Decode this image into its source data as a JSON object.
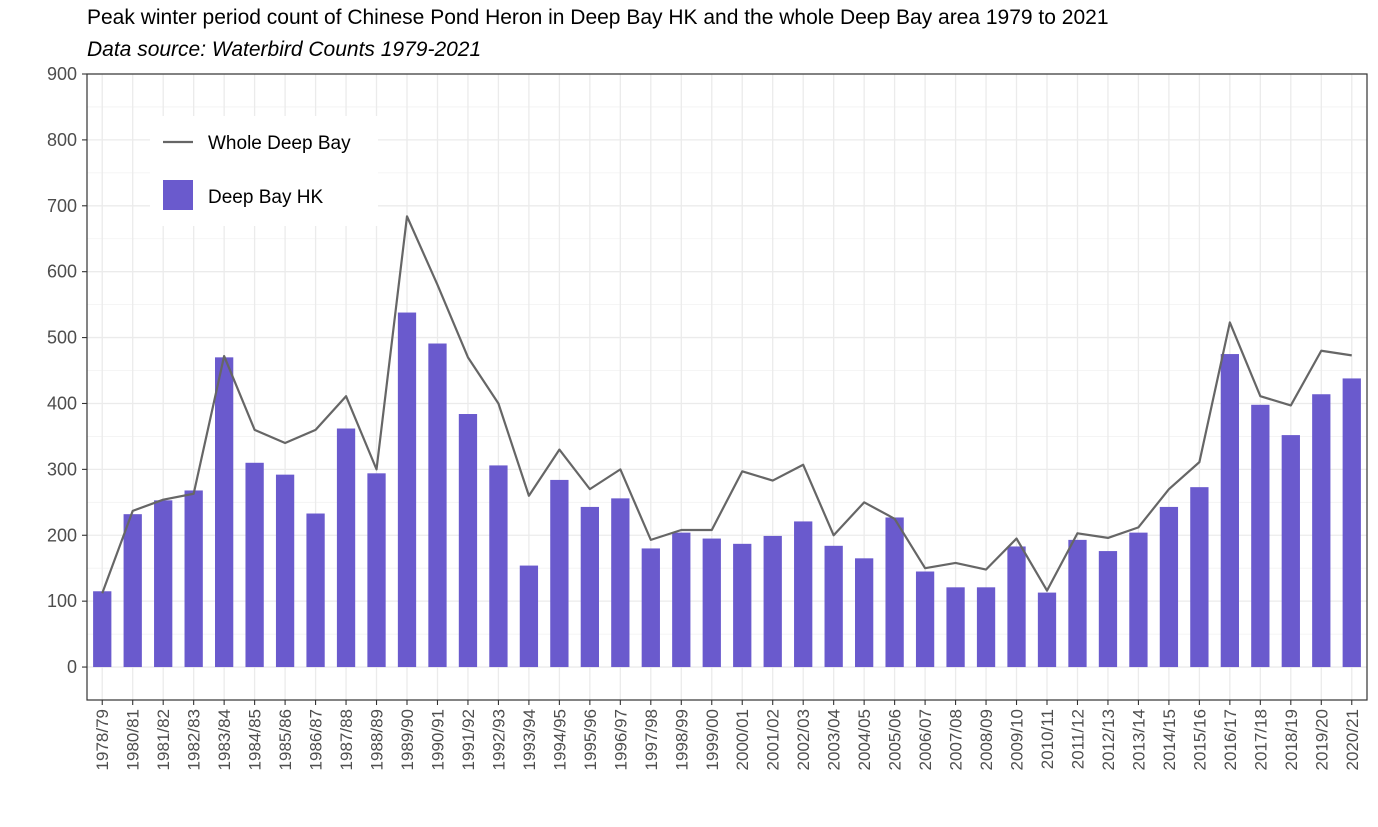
{
  "chart_data": {
    "type": "bar",
    "title": "Peak winter period count of Chinese Pond Heron in Deep Bay HK and the whole Deep Bay area 1979 to 2021",
    "subtitle": "Data source: Waterbird Counts 1979-2021",
    "categories": [
      "1978/79",
      "1980/81",
      "1981/82",
      "1982/83",
      "1983/84",
      "1984/85",
      "1985/86",
      "1986/87",
      "1987/88",
      "1988/89",
      "1989/90",
      "1990/91",
      "1991/92",
      "1992/93",
      "1993/94",
      "1994/95",
      "1995/96",
      "1996/97",
      "1997/98",
      "1998/99",
      "1999/00",
      "2000/01",
      "2001/02",
      "2002/03",
      "2003/04",
      "2004/05",
      "2005/06",
      "2006/07",
      "2007/08",
      "2008/09",
      "2009/10",
      "2010/11",
      "2011/12",
      "2012/13",
      "2013/14",
      "2014/15",
      "2015/16",
      "2016/17",
      "2017/18",
      "2018/19",
      "2019/20",
      "2020/21"
    ],
    "series": [
      {
        "name": "Deep Bay HK",
        "kind": "bar",
        "color": "#6a5acd",
        "values": [
          115,
          232,
          253,
          268,
          470,
          310,
          292,
          233,
          362,
          294,
          538,
          491,
          384,
          306,
          154,
          284,
          243,
          256,
          180,
          204,
          195,
          187,
          199,
          221,
          184,
          165,
          227,
          145,
          121,
          121,
          183,
          113,
          193,
          176,
          204,
          243,
          273,
          475,
          398,
          352,
          414,
          438
        ]
      },
      {
        "name": "Whole Deep Bay",
        "kind": "line",
        "color": "#666666",
        "values": [
          112,
          237,
          254,
          263,
          472,
          360,
          340,
          360,
          411,
          300,
          684,
          580,
          470,
          400,
          260,
          330,
          270,
          300,
          193,
          208,
          208,
          297,
          283,
          307,
          200,
          250,
          225,
          150,
          158,
          148,
          195,
          116,
          203,
          196,
          212,
          270,
          311,
          523,
          411,
          397,
          480,
          473
        ]
      }
    ],
    "xlabel": "",
    "ylabel": "",
    "ylim": [
      -50,
      900
    ],
    "yticks": [
      0,
      100,
      200,
      300,
      400,
      500,
      600,
      700,
      800,
      900
    ],
    "grid": true,
    "legend_position": "top-left"
  }
}
